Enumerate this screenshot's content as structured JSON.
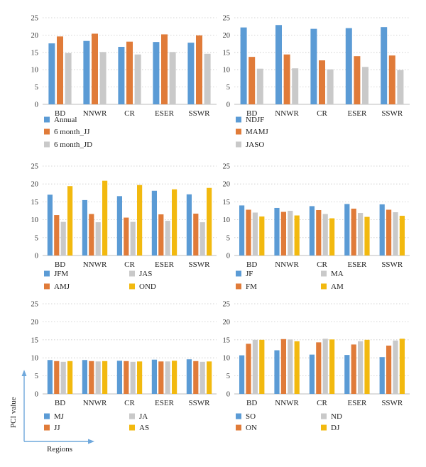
{
  "axis_guide": {
    "y_label": "PCI value",
    "x_label": "Regions",
    "color": "#6fa8dc"
  },
  "chart_data": [
    {
      "type": "bar",
      "categories": [
        "BD",
        "NNWR",
        "CR",
        "ESER",
        "SSWR"
      ],
      "yticks": [
        0,
        5,
        10,
        15,
        20,
        25
      ],
      "ylim": [
        0,
        25
      ],
      "grid": true,
      "legend": "bottom",
      "series": [
        {
          "name": "Annual",
          "color": "#5b9bd5",
          "values": [
            17.6,
            18.3,
            16.6,
            18.0,
            17.8
          ]
        },
        {
          "name": "6 month_JJ",
          "color": "#e07b39",
          "values": [
            19.6,
            20.4,
            18.1,
            20.2,
            19.9
          ]
        },
        {
          "name": "6 month_JD",
          "color": "#c9c9c9",
          "values": [
            14.8,
            15.1,
            14.4,
            15.1,
            14.6
          ]
        }
      ]
    },
    {
      "type": "bar",
      "categories": [
        "BD",
        "NNWR",
        "CR",
        "ESER",
        "SSWR"
      ],
      "yticks": [
        0,
        5,
        10,
        15,
        20,
        25
      ],
      "ylim": [
        0,
        25
      ],
      "grid": true,
      "legend": "bottom",
      "series": [
        {
          "name": "NDJF",
          "color": "#5b9bd5",
          "values": [
            22.2,
            22.9,
            21.8,
            22.0,
            22.3
          ]
        },
        {
          "name": "MAMJ",
          "color": "#e07b39",
          "values": [
            13.7,
            14.4,
            12.7,
            13.9,
            14.1
          ]
        },
        {
          "name": "JASO",
          "color": "#c9c9c9",
          "values": [
            10.3,
            10.4,
            10.1,
            10.8,
            9.9
          ]
        }
      ]
    },
    {
      "type": "bar",
      "categories": [
        "BD",
        "NNWR",
        "CR",
        "ESER",
        "SSWR"
      ],
      "yticks": [
        0,
        5,
        10,
        15,
        20,
        25
      ],
      "ylim": [
        0,
        25
      ],
      "grid": true,
      "legend": "bottom",
      "series": [
        {
          "name": "JFM",
          "color": "#5b9bd5",
          "values": [
            17.0,
            15.5,
            16.6,
            18.1,
            17.1
          ]
        },
        {
          "name": "AMJ",
          "color": "#e07b39",
          "values": [
            11.3,
            11.6,
            10.6,
            11.5,
            11.7
          ]
        },
        {
          "name": "JAS",
          "color": "#c9c9c9",
          "values": [
            9.4,
            9.3,
            9.4,
            9.7,
            9.3
          ]
        },
        {
          "name": "OND",
          "color": "#f2b90f",
          "values": [
            19.4,
            20.9,
            19.7,
            18.5,
            18.9
          ]
        }
      ]
    },
    {
      "type": "bar",
      "categories": [
        "BD",
        "NNWR",
        "CR",
        "ESER",
        "SSWR"
      ],
      "yticks": [
        0,
        5,
        10,
        15,
        20,
        25
      ],
      "ylim": [
        0,
        25
      ],
      "grid": true,
      "legend": "bottom",
      "series": [
        {
          "name": "JF",
          "color": "#5b9bd5",
          "values": [
            14.0,
            13.3,
            13.8,
            14.4,
            14.3
          ]
        },
        {
          "name": "FM",
          "color": "#e07b39",
          "values": [
            12.8,
            12.2,
            12.7,
            13.1,
            12.8
          ]
        },
        {
          "name": "MA",
          "color": "#c9c9c9",
          "values": [
            12.0,
            12.5,
            11.6,
            11.9,
            12.1
          ]
        },
        {
          "name": "AM",
          "color": "#f2b90f",
          "values": [
            10.9,
            11.2,
            10.4,
            10.8,
            11.1
          ]
        }
      ]
    },
    {
      "type": "bar",
      "categories": [
        "BD",
        "NNWR",
        "CR",
        "ESER",
        "SSWR"
      ],
      "yticks": [
        0,
        5,
        10,
        15,
        20,
        25
      ],
      "ylim": [
        0,
        25
      ],
      "grid": true,
      "legend": "bottom",
      "series": [
        {
          "name": "MJ",
          "color": "#5b9bd5",
          "values": [
            9.4,
            9.4,
            9.2,
            9.5,
            9.6
          ]
        },
        {
          "name": "JJ",
          "color": "#e07b39",
          "values": [
            9.1,
            9.1,
            9.1,
            9.0,
            9.1
          ]
        },
        {
          "name": "JA",
          "color": "#c9c9c9",
          "values": [
            8.9,
            9.0,
            8.9,
            9.0,
            8.9
          ]
        },
        {
          "name": "AS",
          "color": "#f2b90f",
          "values": [
            9.1,
            9.1,
            9.0,
            9.2,
            9.0
          ]
        }
      ]
    },
    {
      "type": "bar",
      "categories": [
        "BD",
        "NNWR",
        "CR",
        "ESER",
        "SSWR"
      ],
      "yticks": [
        0,
        5,
        10,
        15,
        20,
        25
      ],
      "ylim": [
        0,
        25
      ],
      "grid": true,
      "legend": "bottom",
      "series": [
        {
          "name": "SO",
          "color": "#5b9bd5",
          "values": [
            10.7,
            12.1,
            10.9,
            10.8,
            10.2
          ]
        },
        {
          "name": "ON",
          "color": "#e07b39",
          "values": [
            13.9,
            15.2,
            14.3,
            13.7,
            13.4
          ]
        },
        {
          "name": "ND",
          "color": "#c9c9c9",
          "values": [
            15.0,
            15.1,
            15.3,
            14.6,
            14.8
          ]
        },
        {
          "name": "DJ",
          "color": "#f2b90f",
          "values": [
            15.0,
            14.6,
            15.1,
            15.0,
            15.3
          ]
        }
      ]
    }
  ]
}
